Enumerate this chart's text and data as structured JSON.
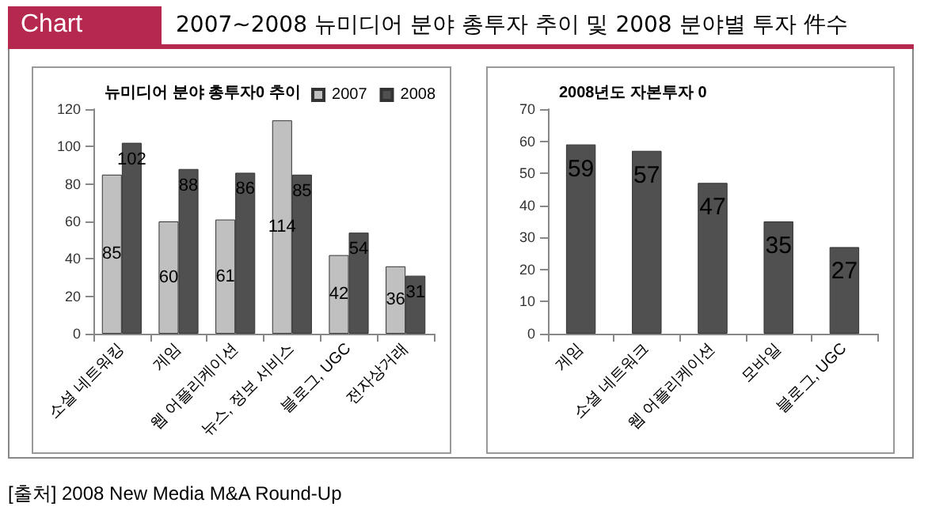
{
  "chart_data": [
    {
      "type": "bar",
      "title": "뉴미디어 분야 총투자0 추이",
      "categories": [
        "소셜 네트워킹",
        "게임",
        "웹 어플리케이션",
        "뉴스, 정보 서비스",
        "블로그, UGC",
        "전자상거래"
      ],
      "series": [
        {
          "name": "2007",
          "color": "#c0c0c0",
          "values": [
            85,
            60,
            61,
            114,
            42,
            36
          ]
        },
        {
          "name": "2008",
          "color": "#505050",
          "values": [
            102,
            88,
            86,
            85,
            54,
            31
          ]
        }
      ],
      "ylim": [
        0,
        120
      ],
      "yticks": [
        0,
        20,
        40,
        60,
        80,
        100,
        120
      ],
      "data_labels": true,
      "legend": "top right",
      "annotations": [
        "Chart",
        "2007~2008 뉴미디어 분야 총투자 추이 및 2008 분야별 투자 件수",
        "[출처] 2008 New Media M&A Round-Up"
      ]
    },
    {
      "type": "bar",
      "title": "2008년도 자본투자 0",
      "categories": [
        "게임",
        "소셜 네트워크",
        "웹 어플리케이션",
        "모바일",
        "블로그, UGC"
      ],
      "series": [
        {
          "color": "#505050",
          "values": [
            59,
            57,
            47,
            35,
            27
          ]
        }
      ],
      "ylim": [
        0,
        70
      ],
      "yticks": [
        0,
        10,
        20,
        30,
        40,
        50,
        60,
        70
      ],
      "data_labels": true
    }
  ]
}
